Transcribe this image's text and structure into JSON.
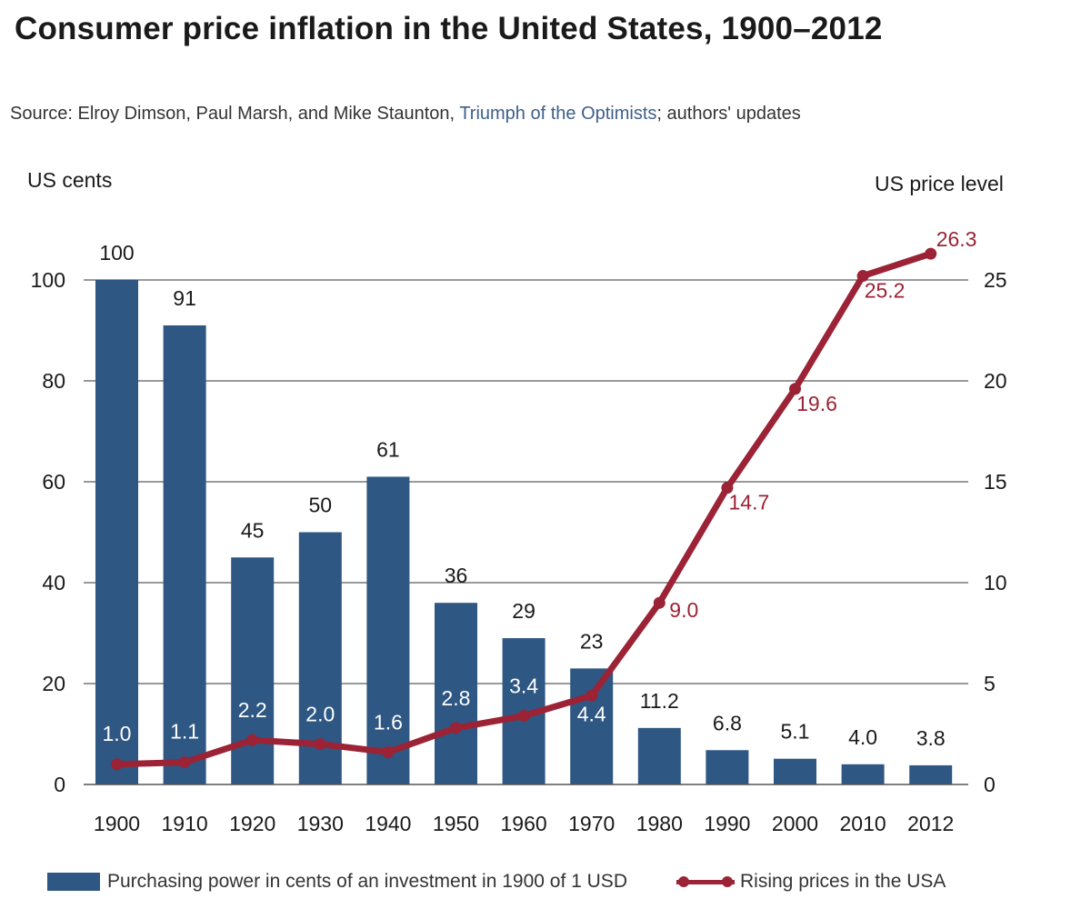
{
  "title": "Consumer price inflation in the United States, 1900–2012",
  "source": {
    "prefix": "Source: Elroy Dimson, Paul Marsh, and Mike Staunton, ",
    "link": "Triumph of the Optimists",
    "suffix": "; authors' updates"
  },
  "colors": {
    "bar": "#2e5783",
    "line": "#9b2335",
    "grid": "#333333"
  },
  "chart_data": {
    "type": "bar+line",
    "categories": [
      "1900",
      "1910",
      "1920",
      "1930",
      "1940",
      "1950",
      "1960",
      "1970",
      "1980",
      "1990",
      "2000",
      "2010",
      "2012"
    ],
    "left_axis": {
      "label": "US cents",
      "range": [
        0,
        100
      ],
      "ticks": [
        "0",
        "20",
        "40",
        "60",
        "80",
        "100"
      ]
    },
    "right_axis": {
      "label": "US price level",
      "range": [
        0,
        25
      ],
      "ticks": [
        "0",
        "5",
        "10",
        "15",
        "20",
        "25"
      ]
    },
    "series": [
      {
        "name": "Purchasing power in cents of an investment in 1900 of 1 USD",
        "type": "bar",
        "axis": "left",
        "values": [
          100,
          91,
          45,
          50,
          61,
          36,
          29,
          23,
          11.2,
          6.8,
          5.1,
          4.0,
          3.8
        ],
        "labels": [
          "100",
          "91",
          "45",
          "50",
          "61",
          "36",
          "29",
          "23",
          "11.2",
          "6.8",
          "5.1",
          "4.0",
          "3.8"
        ]
      },
      {
        "name": "Rising prices in the USA",
        "type": "line",
        "axis": "right",
        "values": [
          1.0,
          1.1,
          2.2,
          2.0,
          1.6,
          2.8,
          3.4,
          4.4,
          9.0,
          14.7,
          19.6,
          25.2,
          26.3
        ],
        "labels": [
          "1.0",
          "1.1",
          "2.2",
          "2.0",
          "1.6",
          "2.8",
          "3.4",
          "4.4",
          "9.0",
          "14.7",
          "19.6",
          "25.2",
          "26.3"
        ]
      }
    ],
    "legend": [
      "Purchasing power in cents of an investment in 1900 of 1 USD",
      "Rising prices in the USA"
    ],
    "grid": true
  }
}
